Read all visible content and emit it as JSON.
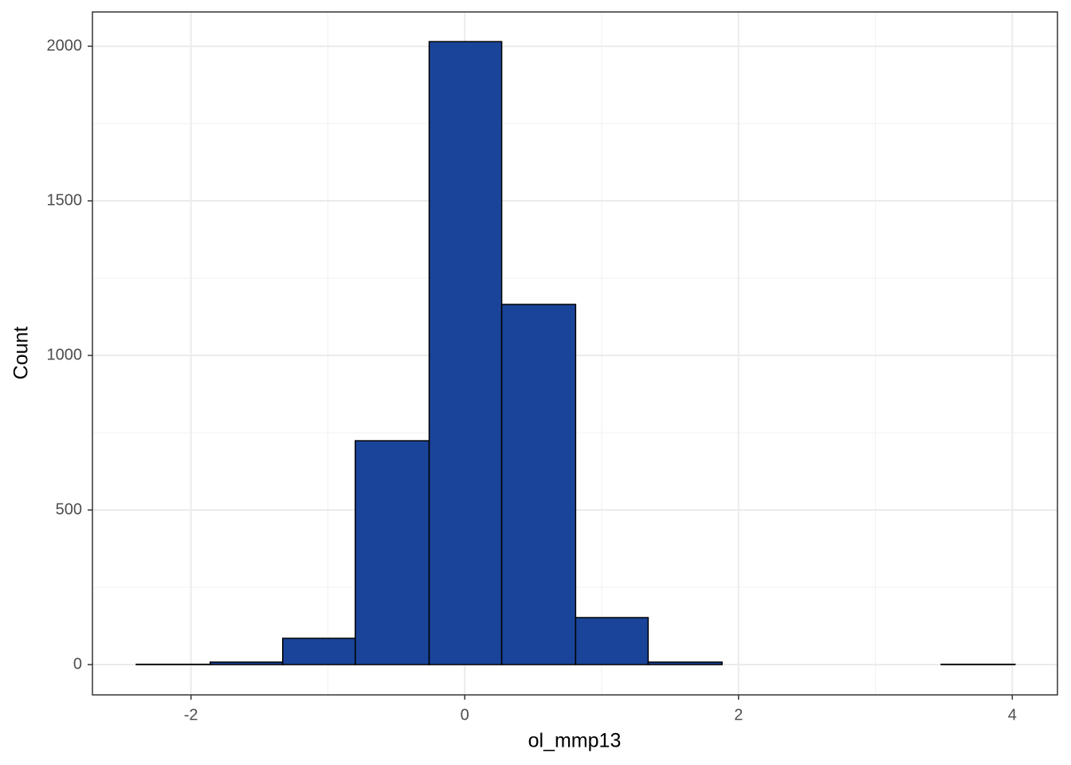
{
  "chart_data": {
    "type": "histogram",
    "x_label": "ol_mmp13",
    "y_label": "Count",
    "bins": [
      -2.4,
      -1.86,
      -1.33,
      -0.8,
      -0.26,
      0.27,
      0.81,
      1.34,
      1.88,
      2.41,
      2.95,
      3.48,
      4.02
    ],
    "values": [
      1,
      8,
      85,
      724,
      2015,
      1165,
      152,
      8,
      0,
      0,
      0,
      1
    ],
    "color": "#1a4499",
    "edge_color": "#000000",
    "xlim": [
      -2.72,
      4.33
    ],
    "ylim": [
      -98,
      2111
    ],
    "xticks": [
      -2,
      0,
      2,
      4
    ],
    "yticks": [
      0,
      500,
      1000,
      1500,
      2000
    ],
    "xminor": [
      -1,
      1,
      3
    ],
    "yminor": [
      250,
      750,
      1250,
      1750
    ],
    "grid": true
  }
}
